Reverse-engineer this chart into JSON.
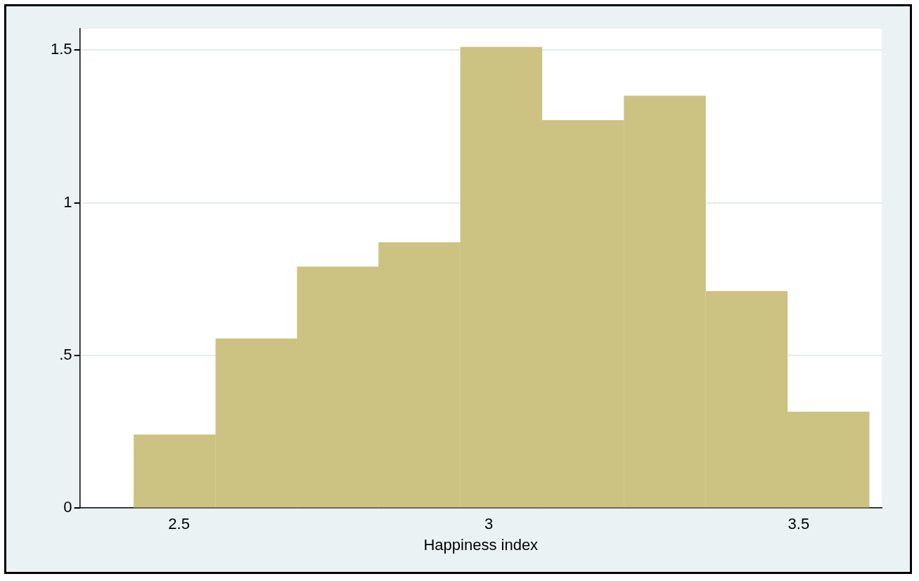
{
  "chart_data": {
    "type": "histogram",
    "xlabel": "Happiness index",
    "bins": [
      2.427,
      2.559,
      2.691,
      2.822,
      2.954,
      3.086,
      3.218,
      3.35,
      3.482,
      3.614
    ],
    "values": [
      0.24,
      0.555,
      0.79,
      0.87,
      1.51,
      1.27,
      1.35,
      0.71,
      0.315
    ],
    "color": "#ccc383",
    "xlim": [
      2.34,
      3.634
    ],
    "xticks": [
      2.5,
      3,
      3.5
    ],
    "ylim": [
      0,
      1.57
    ],
    "yticks": [
      0,
      {
        "value": 0.5,
        "label": ".5"
      },
      1,
      1.5
    ],
    "grid": "y"
  }
}
